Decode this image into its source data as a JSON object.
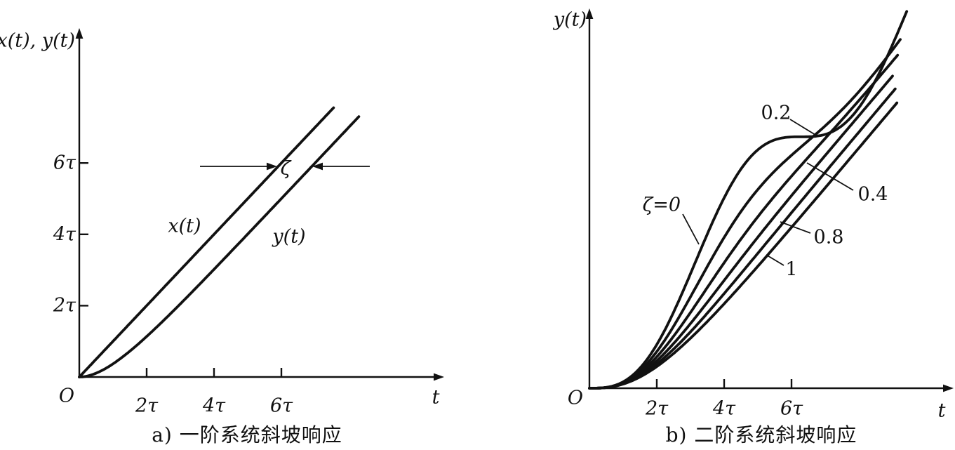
{
  "figure": {
    "background": "#ffffff",
    "ink_color": "#111111"
  },
  "chart_data": [
    {
      "id": "a",
      "type": "line",
      "caption": "a) 一阶系统斜坡响应",
      "xlabel": "t",
      "ylabel": "x(t), y(t)",
      "origin_label": "O",
      "x_ticks": [
        "2τ",
        "4τ",
        "6τ"
      ],
      "x_tick_values": [
        2,
        4,
        6
      ],
      "y_ticks": [
        "2τ",
        "4τ",
        "6τ"
      ],
      "y_tick_values": [
        2,
        4,
        6
      ],
      "grid": false,
      "series": [
        {
          "name": "x(t)",
          "kind": "ramp"
        },
        {
          "name": "y(t)",
          "kind": "first_order_ramp",
          "time_constant": 1
        }
      ],
      "annotation": {
        "label": "ζ",
        "level": 6
      }
    },
    {
      "id": "b",
      "type": "line",
      "caption": "b) 二阶系统斜坡响应",
      "xlabel": "t",
      "ylabel": "y(t)",
      "origin_label": "O",
      "x_ticks": [
        "2τ",
        "4τ",
        "6τ"
      ],
      "x_tick_values": [
        2,
        4,
        6
      ],
      "grid": false,
      "series": [
        {
          "label": "ζ=0",
          "zeta": 0
        },
        {
          "label": "0.2",
          "zeta": 0.2
        },
        {
          "label": "0.4",
          "zeta": 0.4
        },
        {
          "label": "",
          "zeta": 0.6
        },
        {
          "label": "0.8",
          "zeta": 0.8
        },
        {
          "label": "1",
          "zeta": 1
        }
      ]
    }
  ]
}
